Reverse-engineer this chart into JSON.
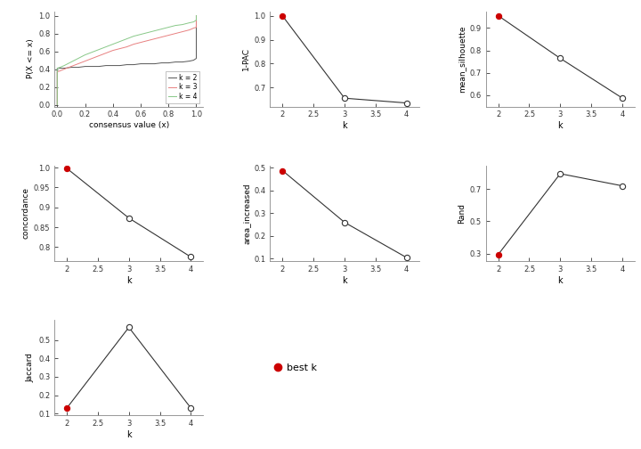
{
  "ecdf": {
    "k2": {
      "x": [
        0.0,
        0.0,
        0.02,
        0.05,
        0.1,
        0.15,
        0.2,
        0.25,
        0.3,
        0.35,
        0.4,
        0.45,
        0.5,
        0.55,
        0.6,
        0.65,
        0.7,
        0.75,
        0.8,
        0.85,
        0.9,
        0.95,
        0.98,
        1.0,
        1.0
      ],
      "y": [
        0.0,
        0.41,
        0.41,
        0.41,
        0.42,
        0.42,
        0.43,
        0.43,
        0.43,
        0.44,
        0.44,
        0.44,
        0.45,
        0.45,
        0.46,
        0.46,
        0.46,
        0.47,
        0.47,
        0.48,
        0.48,
        0.49,
        0.5,
        0.52,
        1.0
      ]
    },
    "k3": {
      "x": [
        0.0,
        0.0,
        0.02,
        0.05,
        0.1,
        0.15,
        0.2,
        0.25,
        0.3,
        0.35,
        0.4,
        0.45,
        0.5,
        0.55,
        0.6,
        0.65,
        0.7,
        0.75,
        0.8,
        0.85,
        0.9,
        0.95,
        0.98,
        1.0,
        1.0
      ],
      "y": [
        0.0,
        0.37,
        0.38,
        0.4,
        0.43,
        0.46,
        0.49,
        0.52,
        0.55,
        0.58,
        0.61,
        0.63,
        0.65,
        0.68,
        0.7,
        0.72,
        0.74,
        0.76,
        0.78,
        0.8,
        0.82,
        0.84,
        0.86,
        0.87,
        1.0
      ]
    },
    "k4": {
      "x": [
        0.0,
        0.0,
        0.02,
        0.05,
        0.1,
        0.15,
        0.2,
        0.25,
        0.3,
        0.35,
        0.4,
        0.45,
        0.5,
        0.55,
        0.6,
        0.65,
        0.7,
        0.75,
        0.8,
        0.85,
        0.9,
        0.95,
        0.98,
        1.0,
        1.0
      ],
      "y": [
        0.0,
        0.41,
        0.42,
        0.44,
        0.48,
        0.52,
        0.56,
        0.59,
        0.62,
        0.65,
        0.68,
        0.71,
        0.74,
        0.77,
        0.79,
        0.81,
        0.83,
        0.85,
        0.87,
        0.89,
        0.9,
        0.92,
        0.93,
        0.95,
        1.0
      ]
    },
    "colors": {
      "k2": "#555555",
      "k3": "#e88080",
      "k4": "#88c888"
    }
  },
  "one_pac": {
    "k": [
      2,
      3,
      4
    ],
    "y": [
      1.0,
      0.655,
      0.635
    ],
    "best_k": 2,
    "ylim": [
      0.62,
      1.02
    ],
    "yticks": [
      0.7,
      0.8,
      0.9,
      1.0
    ]
  },
  "mean_silhouette": {
    "k": [
      2,
      3,
      4
    ],
    "y": [
      0.955,
      0.765,
      0.588
    ],
    "best_k": 2,
    "ylim": [
      0.55,
      0.975
    ],
    "yticks": [
      0.6,
      0.7,
      0.8,
      0.9
    ]
  },
  "concordance": {
    "k": [
      2,
      3,
      4
    ],
    "y": [
      0.998,
      0.873,
      0.775
    ],
    "best_k": 2,
    "ylim": [
      0.765,
      1.005
    ],
    "yticks": [
      0.8,
      0.85,
      0.9,
      0.95,
      1.0
    ]
  },
  "area_increased": {
    "k": [
      2,
      3,
      4
    ],
    "y": [
      0.488,
      0.26,
      0.105
    ],
    "best_k": 2,
    "ylim": [
      0.09,
      0.51
    ],
    "yticks": [
      0.1,
      0.2,
      0.3,
      0.4,
      0.5
    ]
  },
  "rand": {
    "k": [
      2,
      3,
      4
    ],
    "y": [
      0.295,
      0.795,
      0.72
    ],
    "best_k": 2,
    "ylim": [
      0.255,
      0.845
    ],
    "yticks": [
      0.3,
      0.5,
      0.7
    ]
  },
  "jaccard": {
    "k": [
      2,
      3,
      4
    ],
    "y": [
      0.13,
      0.57,
      0.13
    ],
    "best_k": 2,
    "ylim": [
      0.09,
      0.61
    ],
    "yticks": [
      0.1,
      0.2,
      0.3,
      0.4,
      0.5
    ]
  },
  "best_k": 2,
  "line_color": "#333333",
  "open_circle_color": "#333333",
  "filled_circle_color": "#cc0000",
  "bg_color": "#ffffff"
}
